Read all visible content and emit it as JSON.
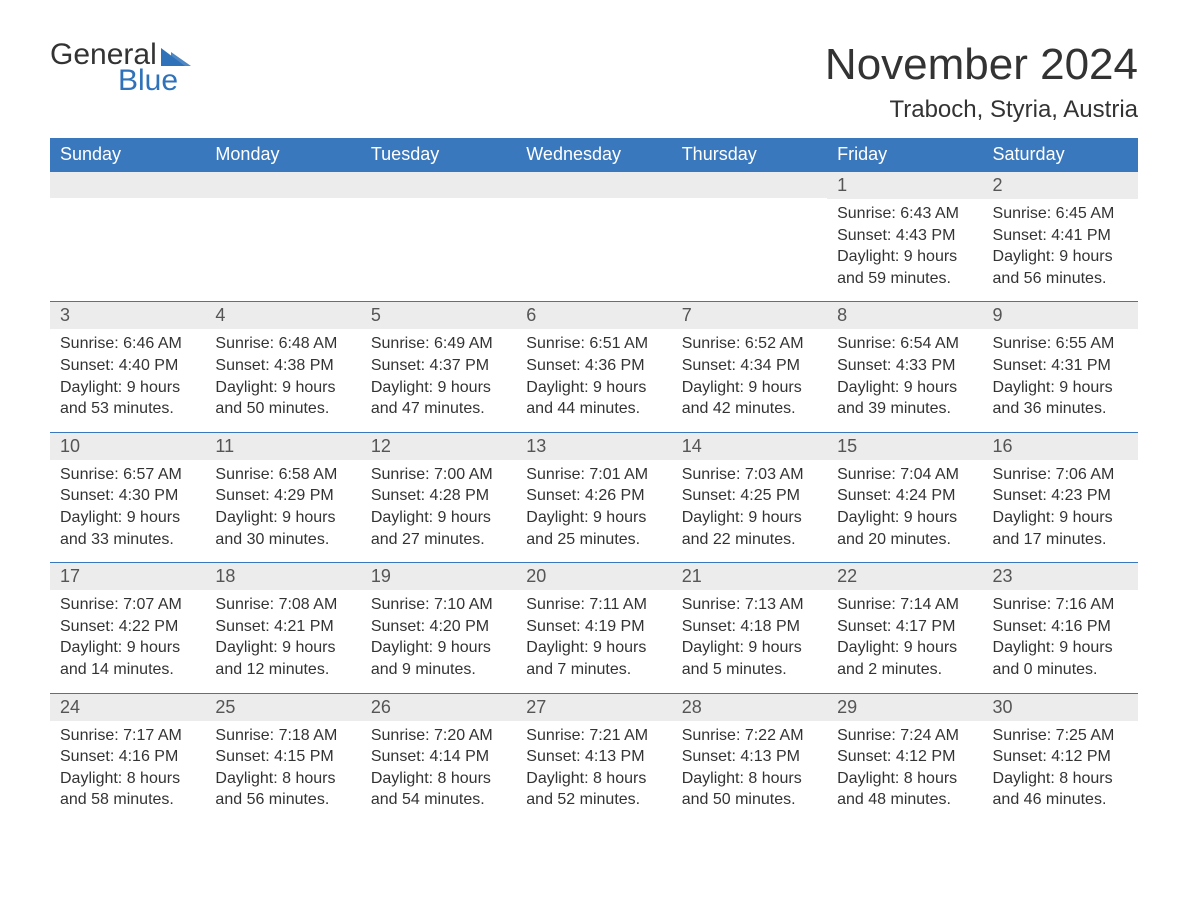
{
  "logo": {
    "word1": "General",
    "word2": "Blue"
  },
  "title": "November 2024",
  "location": "Traboch, Styria, Austria",
  "colors": {
    "header_bg": "#3a78bd",
    "header_text": "#ffffff",
    "daynum_bg": "#ececec",
    "border": "#3a78bd",
    "logo_blue": "#2f72b9",
    "text": "#333333"
  },
  "weekday_headers": [
    "Sunday",
    "Monday",
    "Tuesday",
    "Wednesday",
    "Thursday",
    "Friday",
    "Saturday"
  ],
  "labels": {
    "sunrise": "Sunrise:",
    "sunset": "Sunset:",
    "daylight": "Daylight:"
  },
  "weeks": [
    [
      {
        "n": "",
        "sunrise": "",
        "sunset": "",
        "daylight1": "",
        "daylight2": ""
      },
      {
        "n": "",
        "sunrise": "",
        "sunset": "",
        "daylight1": "",
        "daylight2": ""
      },
      {
        "n": "",
        "sunrise": "",
        "sunset": "",
        "daylight1": "",
        "daylight2": ""
      },
      {
        "n": "",
        "sunrise": "",
        "sunset": "",
        "daylight1": "",
        "daylight2": ""
      },
      {
        "n": "",
        "sunrise": "",
        "sunset": "",
        "daylight1": "",
        "daylight2": ""
      },
      {
        "n": "1",
        "sunrise": "Sunrise: 6:43 AM",
        "sunset": "Sunset: 4:43 PM",
        "daylight1": "Daylight: 9 hours",
        "daylight2": "and 59 minutes."
      },
      {
        "n": "2",
        "sunrise": "Sunrise: 6:45 AM",
        "sunset": "Sunset: 4:41 PM",
        "daylight1": "Daylight: 9 hours",
        "daylight2": "and 56 minutes."
      }
    ],
    [
      {
        "n": "3",
        "sunrise": "Sunrise: 6:46 AM",
        "sunset": "Sunset: 4:40 PM",
        "daylight1": "Daylight: 9 hours",
        "daylight2": "and 53 minutes."
      },
      {
        "n": "4",
        "sunrise": "Sunrise: 6:48 AM",
        "sunset": "Sunset: 4:38 PM",
        "daylight1": "Daylight: 9 hours",
        "daylight2": "and 50 minutes."
      },
      {
        "n": "5",
        "sunrise": "Sunrise: 6:49 AM",
        "sunset": "Sunset: 4:37 PM",
        "daylight1": "Daylight: 9 hours",
        "daylight2": "and 47 minutes."
      },
      {
        "n": "6",
        "sunrise": "Sunrise: 6:51 AM",
        "sunset": "Sunset: 4:36 PM",
        "daylight1": "Daylight: 9 hours",
        "daylight2": "and 44 minutes."
      },
      {
        "n": "7",
        "sunrise": "Sunrise: 6:52 AM",
        "sunset": "Sunset: 4:34 PM",
        "daylight1": "Daylight: 9 hours",
        "daylight2": "and 42 minutes."
      },
      {
        "n": "8",
        "sunrise": "Sunrise: 6:54 AM",
        "sunset": "Sunset: 4:33 PM",
        "daylight1": "Daylight: 9 hours",
        "daylight2": "and 39 minutes."
      },
      {
        "n": "9",
        "sunrise": "Sunrise: 6:55 AM",
        "sunset": "Sunset: 4:31 PM",
        "daylight1": "Daylight: 9 hours",
        "daylight2": "and 36 minutes."
      }
    ],
    [
      {
        "n": "10",
        "sunrise": "Sunrise: 6:57 AM",
        "sunset": "Sunset: 4:30 PM",
        "daylight1": "Daylight: 9 hours",
        "daylight2": "and 33 minutes."
      },
      {
        "n": "11",
        "sunrise": "Sunrise: 6:58 AM",
        "sunset": "Sunset: 4:29 PM",
        "daylight1": "Daylight: 9 hours",
        "daylight2": "and 30 minutes."
      },
      {
        "n": "12",
        "sunrise": "Sunrise: 7:00 AM",
        "sunset": "Sunset: 4:28 PM",
        "daylight1": "Daylight: 9 hours",
        "daylight2": "and 27 minutes."
      },
      {
        "n": "13",
        "sunrise": "Sunrise: 7:01 AM",
        "sunset": "Sunset: 4:26 PM",
        "daylight1": "Daylight: 9 hours",
        "daylight2": "and 25 minutes."
      },
      {
        "n": "14",
        "sunrise": "Sunrise: 7:03 AM",
        "sunset": "Sunset: 4:25 PM",
        "daylight1": "Daylight: 9 hours",
        "daylight2": "and 22 minutes."
      },
      {
        "n": "15",
        "sunrise": "Sunrise: 7:04 AM",
        "sunset": "Sunset: 4:24 PM",
        "daylight1": "Daylight: 9 hours",
        "daylight2": "and 20 minutes."
      },
      {
        "n": "16",
        "sunrise": "Sunrise: 7:06 AM",
        "sunset": "Sunset: 4:23 PM",
        "daylight1": "Daylight: 9 hours",
        "daylight2": "and 17 minutes."
      }
    ],
    [
      {
        "n": "17",
        "sunrise": "Sunrise: 7:07 AM",
        "sunset": "Sunset: 4:22 PM",
        "daylight1": "Daylight: 9 hours",
        "daylight2": "and 14 minutes."
      },
      {
        "n": "18",
        "sunrise": "Sunrise: 7:08 AM",
        "sunset": "Sunset: 4:21 PM",
        "daylight1": "Daylight: 9 hours",
        "daylight2": "and 12 minutes."
      },
      {
        "n": "19",
        "sunrise": "Sunrise: 7:10 AM",
        "sunset": "Sunset: 4:20 PM",
        "daylight1": "Daylight: 9 hours",
        "daylight2": "and 9 minutes."
      },
      {
        "n": "20",
        "sunrise": "Sunrise: 7:11 AM",
        "sunset": "Sunset: 4:19 PM",
        "daylight1": "Daylight: 9 hours",
        "daylight2": "and 7 minutes."
      },
      {
        "n": "21",
        "sunrise": "Sunrise: 7:13 AM",
        "sunset": "Sunset: 4:18 PM",
        "daylight1": "Daylight: 9 hours",
        "daylight2": "and 5 minutes."
      },
      {
        "n": "22",
        "sunrise": "Sunrise: 7:14 AM",
        "sunset": "Sunset: 4:17 PM",
        "daylight1": "Daylight: 9 hours",
        "daylight2": "and 2 minutes."
      },
      {
        "n": "23",
        "sunrise": "Sunrise: 7:16 AM",
        "sunset": "Sunset: 4:16 PM",
        "daylight1": "Daylight: 9 hours",
        "daylight2": "and 0 minutes."
      }
    ],
    [
      {
        "n": "24",
        "sunrise": "Sunrise: 7:17 AM",
        "sunset": "Sunset: 4:16 PM",
        "daylight1": "Daylight: 8 hours",
        "daylight2": "and 58 minutes."
      },
      {
        "n": "25",
        "sunrise": "Sunrise: 7:18 AM",
        "sunset": "Sunset: 4:15 PM",
        "daylight1": "Daylight: 8 hours",
        "daylight2": "and 56 minutes."
      },
      {
        "n": "26",
        "sunrise": "Sunrise: 7:20 AM",
        "sunset": "Sunset: 4:14 PM",
        "daylight1": "Daylight: 8 hours",
        "daylight2": "and 54 minutes."
      },
      {
        "n": "27",
        "sunrise": "Sunrise: 7:21 AM",
        "sunset": "Sunset: 4:13 PM",
        "daylight1": "Daylight: 8 hours",
        "daylight2": "and 52 minutes."
      },
      {
        "n": "28",
        "sunrise": "Sunrise: 7:22 AM",
        "sunset": "Sunset: 4:13 PM",
        "daylight1": "Daylight: 8 hours",
        "daylight2": "and 50 minutes."
      },
      {
        "n": "29",
        "sunrise": "Sunrise: 7:24 AM",
        "sunset": "Sunset: 4:12 PM",
        "daylight1": "Daylight: 8 hours",
        "daylight2": "and 48 minutes."
      },
      {
        "n": "30",
        "sunrise": "Sunrise: 7:25 AM",
        "sunset": "Sunset: 4:12 PM",
        "daylight1": "Daylight: 8 hours",
        "daylight2": "and 46 minutes."
      }
    ]
  ]
}
